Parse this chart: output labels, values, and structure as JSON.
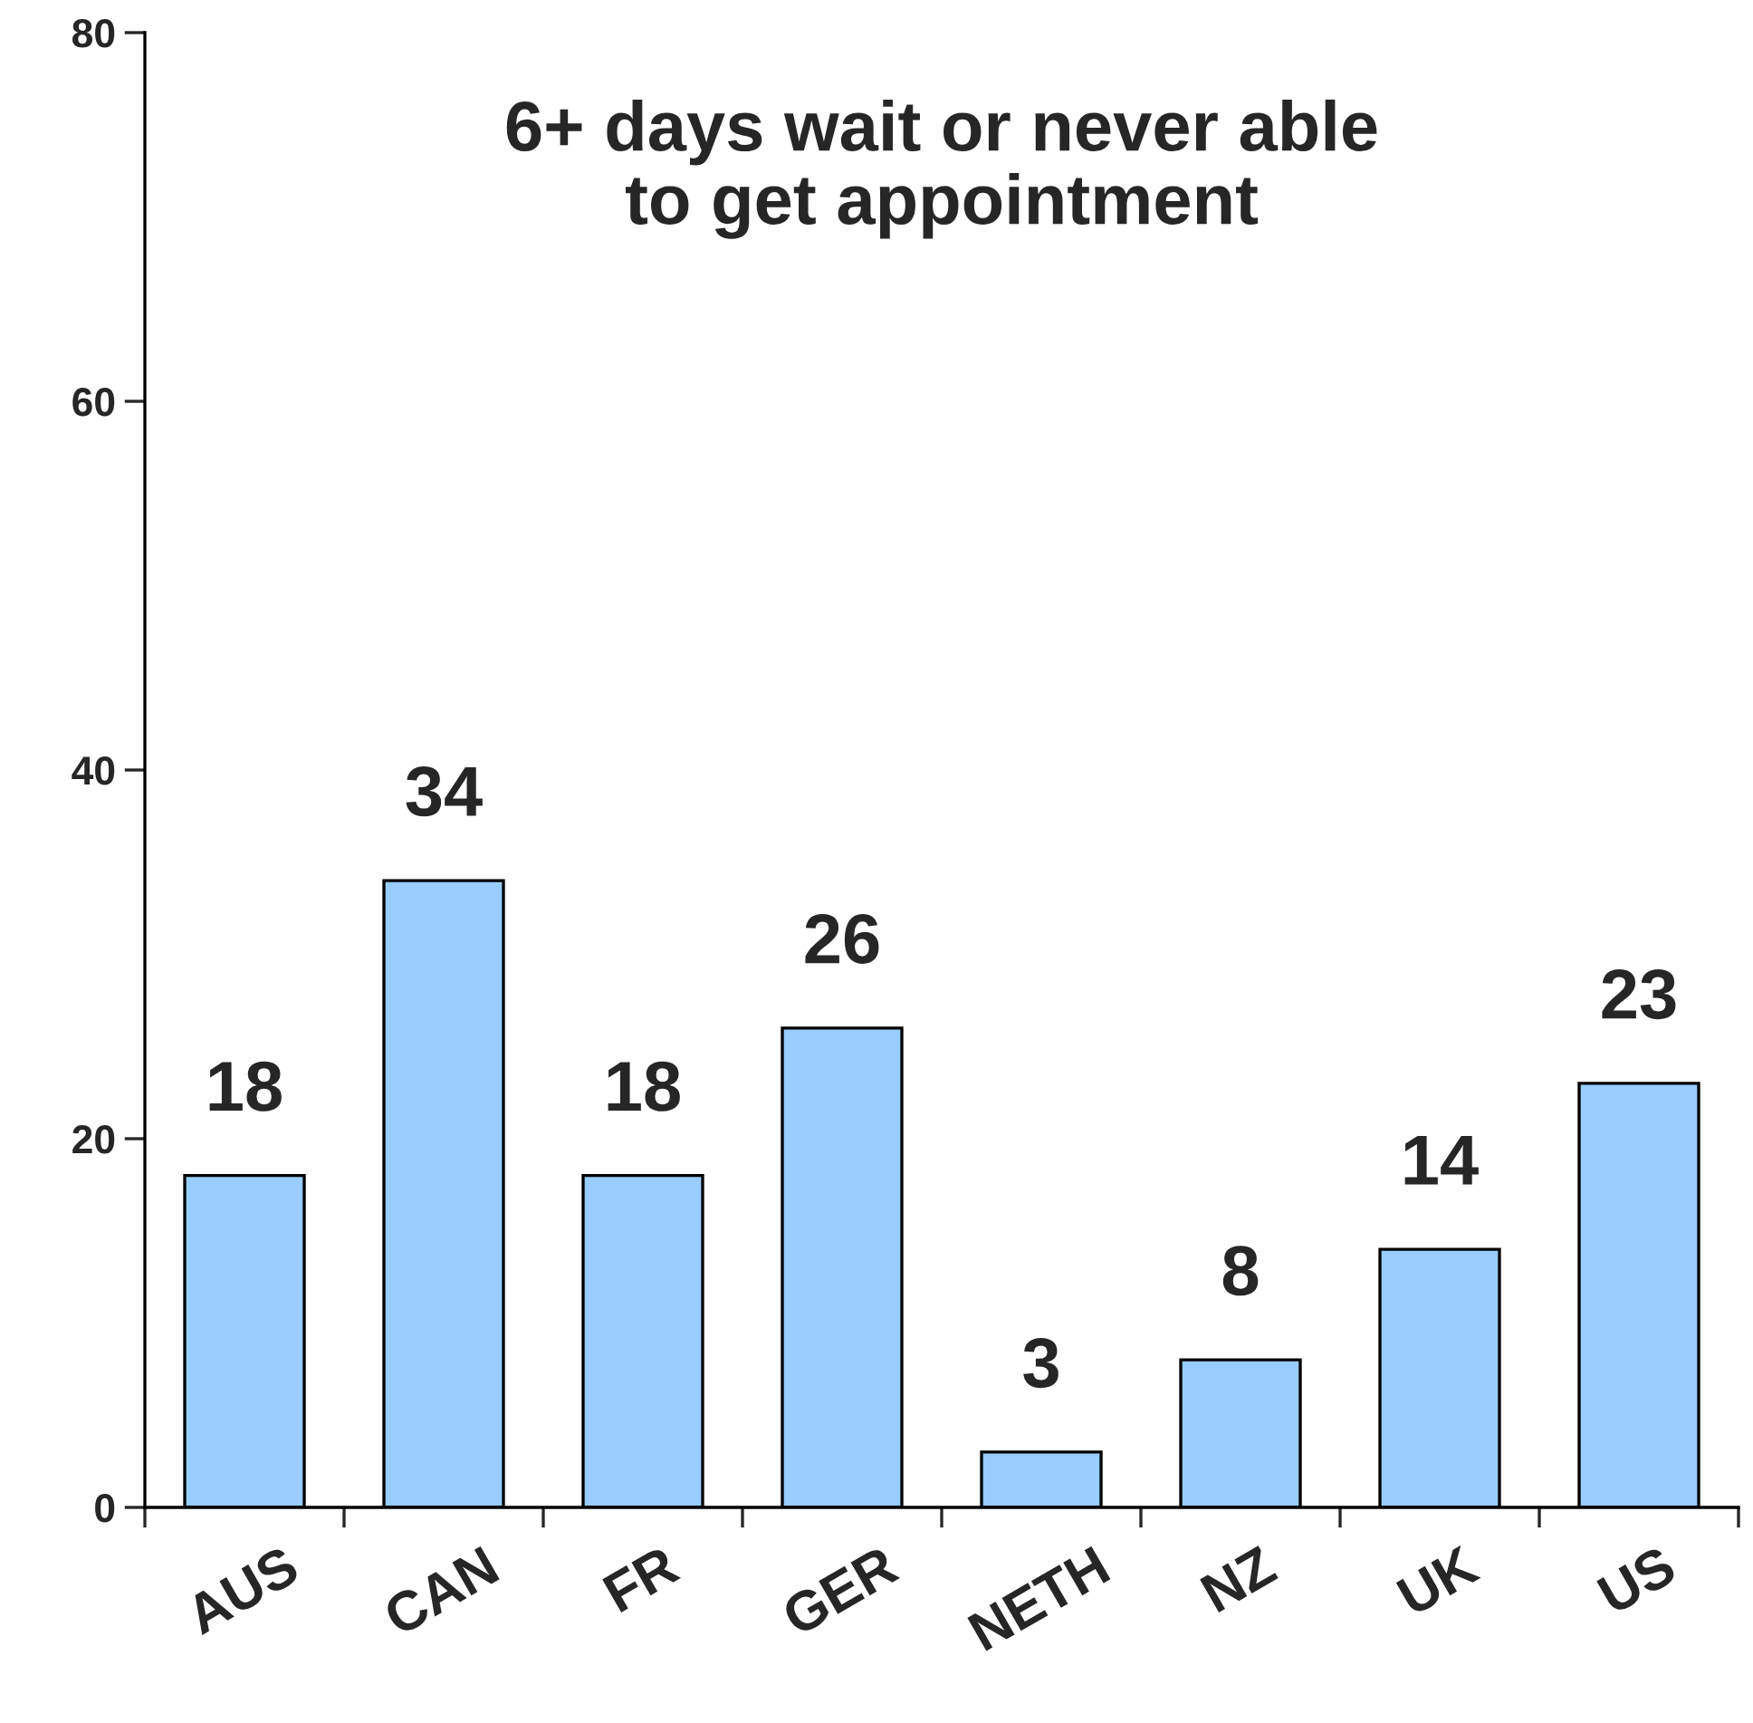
{
  "chart_data": {
    "type": "bar",
    "title": "6+ days wait or never able\nto get appointment",
    "categories": [
      "AUS",
      "CAN",
      "FR",
      "GER",
      "NETH",
      "NZ",
      "UK",
      "US"
    ],
    "values": [
      18,
      34,
      18,
      26,
      3,
      8,
      14,
      23
    ],
    "color": "#99ccff",
    "ylim": [
      0,
      80
    ],
    "yticks": [
      0,
      20,
      40,
      60,
      80
    ],
    "grid": false,
    "data_labels": true
  }
}
